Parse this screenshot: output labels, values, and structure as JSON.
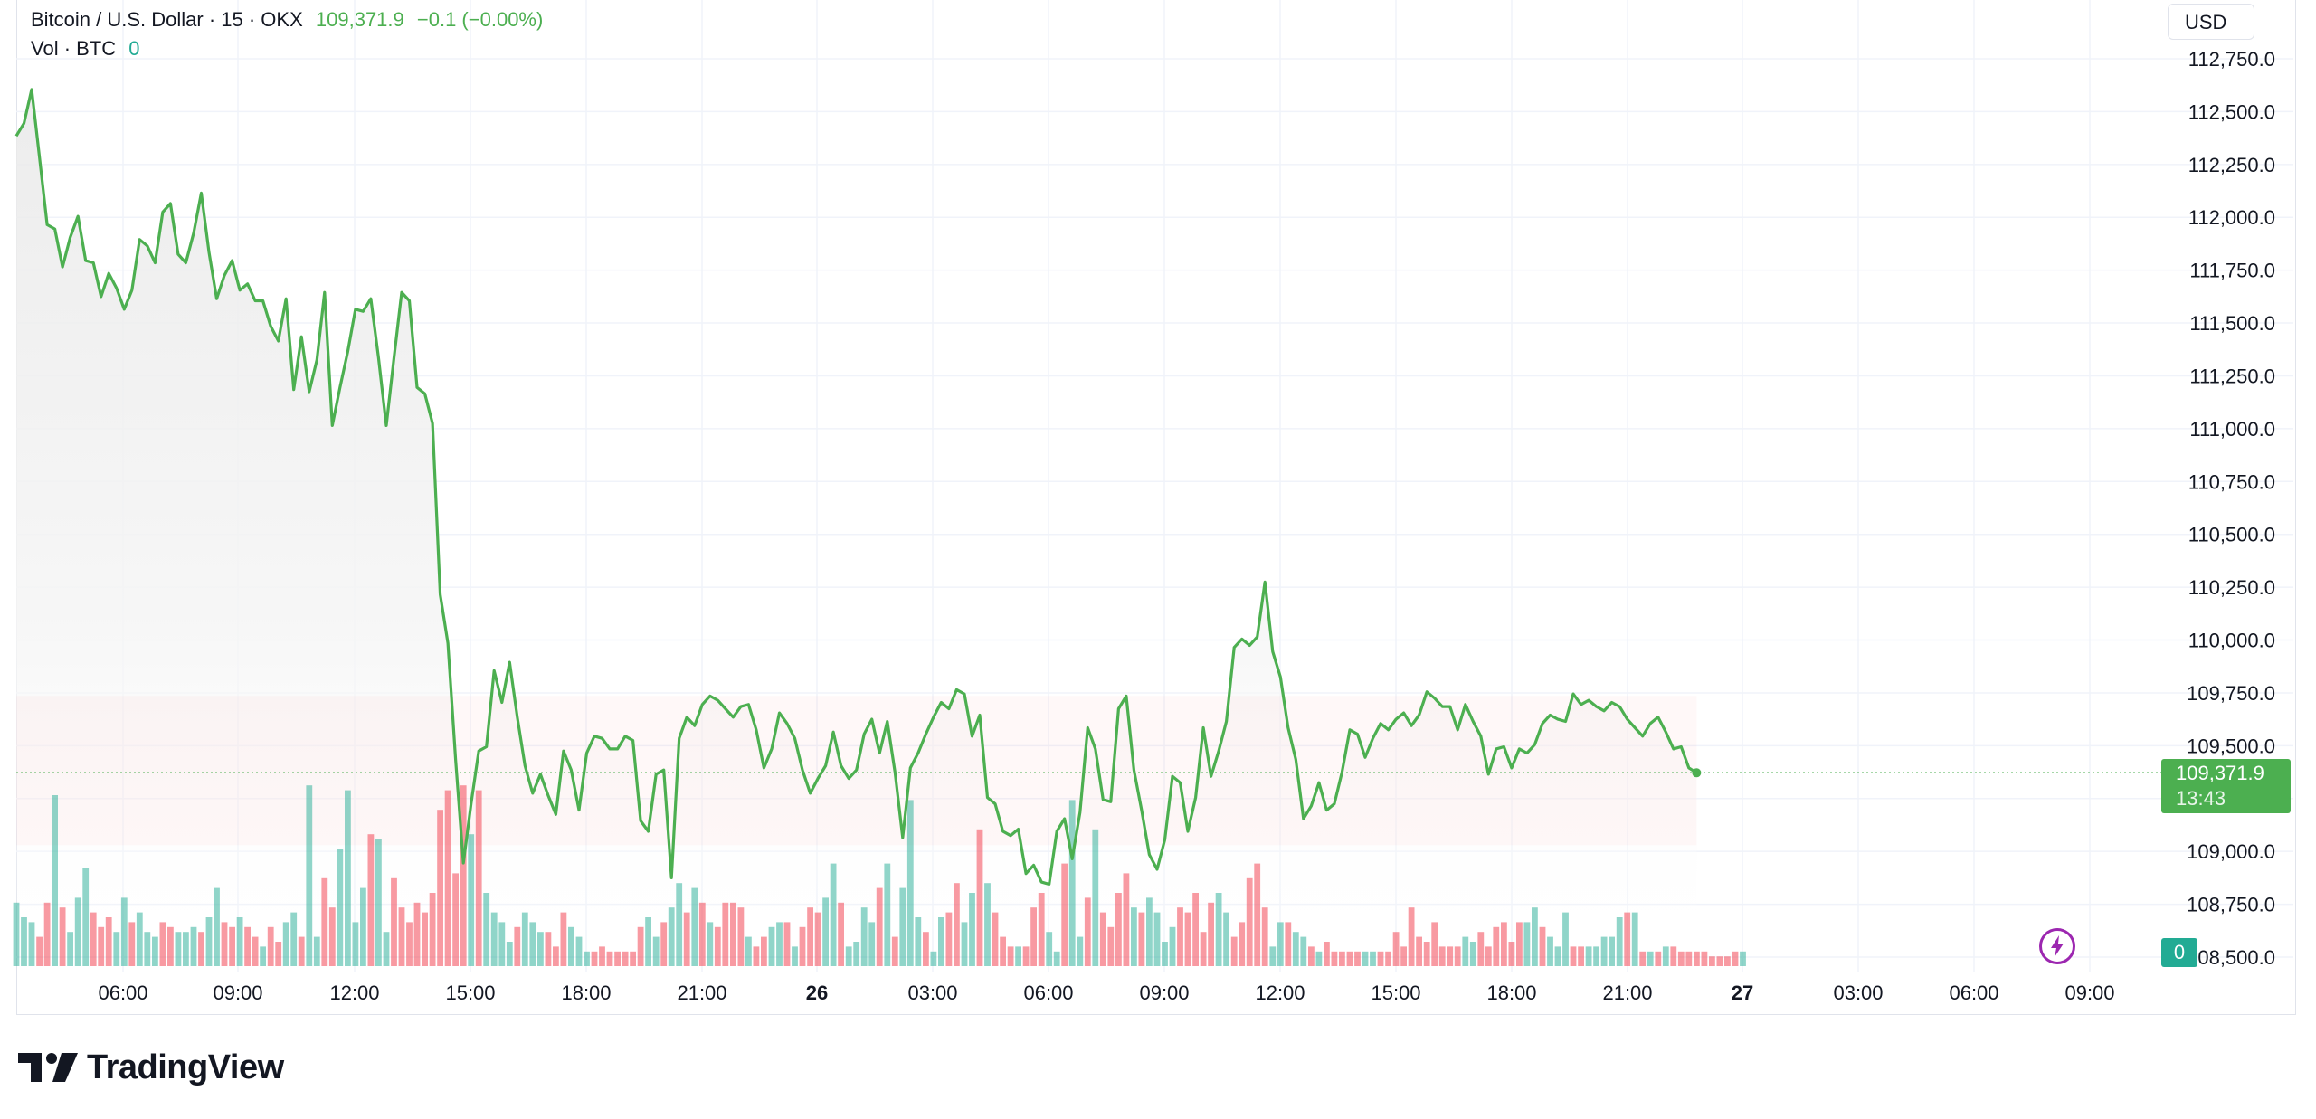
{
  "legend": {
    "symbol": "Bitcoin / U.S. Dollar · 15 · OKX",
    "last_price": "109,371.9",
    "change": "−0.1 (−0.00%)",
    "volume_label": "Vol · BTC",
    "volume_value": "0"
  },
  "currency_button": "USD",
  "price_tag": {
    "price": "109,371.9",
    "countdown": "13:43"
  },
  "volume_tag": "0",
  "logo": {
    "text": "TradingView",
    "icon": "tradingview-logo-icon"
  },
  "colors": {
    "line": "#4caf50",
    "volume_up": "#22ab94",
    "volume_down": "#f23645",
    "price_tag": "#4caf50",
    "grid": "#f0f3fa",
    "bolt_button": "#9c27b0"
  },
  "chart_data": {
    "type": "line",
    "title": "Bitcoin / U.S. Dollar · 15 · OKX",
    "xlabel": "",
    "ylabel": "",
    "ylim": [
      108450,
      112800
    ],
    "y_ticks": [
      "112,750.0",
      "112,500.0",
      "112,250.0",
      "112,000.0",
      "111,750.0",
      "111,500.0",
      "111,250.0",
      "111,000.0",
      "110,750.0",
      "110,500.0",
      "110,250.0",
      "110,000.0",
      "109,750.0",
      "109,500.0",
      "109,250.0",
      "109,000.0",
      "108,750.0",
      "108,500.0"
    ],
    "x_ticks": [
      "06:00",
      "09:00",
      "12:00",
      "15:00",
      "18:00",
      "21:00",
      "26",
      "03:00",
      "06:00",
      "09:00",
      "12:00",
      "15:00",
      "18:00",
      "21:00",
      "27",
      "03:00",
      "06:00",
      "09:00"
    ],
    "x_ticks_bold": [
      "26",
      "27"
    ],
    "grid": true,
    "interval_minutes": 15,
    "last_price": 109371.9,
    "series": [
      {
        "values": [
          112385,
          112445,
          112605,
          112285,
          111965,
          111945,
          111765,
          111905,
          112005,
          111795,
          111785,
          111625,
          111735,
          111665,
          111565,
          111655,
          111895,
          111865,
          111785,
          112025,
          112065,
          111825,
          111785,
          111925,
          112115,
          111835,
          111615,
          111725,
          111795,
          111655,
          111685,
          111605,
          111605,
          111485,
          111415,
          111615,
          111185,
          111435,
          111175,
          111325,
          111645,
          111015,
          111195,
          111365,
          111565,
          111555,
          111615,
          111335,
          111015,
          111335,
          111645,
          111605,
          111195,
          111165,
          111025,
          110215,
          109985,
          109435,
          108945,
          109225,
          109475,
          109495,
          109855,
          109705,
          109895,
          109635,
          109405,
          109275,
          109365,
          109265,
          109175,
          109475,
          109385,
          109195,
          109465,
          109545,
          109535,
          109485,
          109485,
          109545,
          109525,
          109145,
          109095,
          109365,
          109385,
          108875,
          109535,
          109635,
          109595,
          109695,
          109735,
          109715,
          109675,
          109635,
          109685,
          109695,
          109575,
          109395,
          109485,
          109655,
          109605,
          109535,
          109385,
          109275,
          109345,
          109405,
          109565,
          109405,
          109345,
          109385,
          109555,
          109625,
          109465,
          109615,
          109375,
          109065,
          109395,
          109465,
          109555,
          109635,
          109705,
          109675,
          109765,
          109745,
          109545,
          109645,
          109255,
          109225,
          109095,
          109075,
          109105,
          108895,
          108935,
          108855,
          108845,
          109095,
          109155,
          108965,
          109185,
          109585,
          109485,
          109245,
          109235,
          109675,
          109735,
          109385,
          109195,
          108985,
          108915,
          109055,
          109355,
          109325,
          109095,
          109255,
          109585,
          109355,
          109475,
          109615,
          109965,
          110005,
          109975,
          110015,
          110275,
          109945,
          109825,
          109585,
          109435,
          109155,
          109215,
          109325,
          109195,
          109225,
          109375,
          109575,
          109555,
          109445,
          109535,
          109605,
          109575,
          109625,
          109655,
          109595,
          109645,
          109755,
          109725,
          109685,
          109685,
          109575,
          109695,
          109615,
          109545,
          109365,
          109485,
          109495,
          109395,
          109485,
          109465,
          109505,
          109605,
          109645,
          109625,
          109615,
          109745,
          109695,
          109715,
          109685,
          109665,
          109705,
          109685,
          109625,
          109585,
          109545,
          109605,
          109635,
          109565,
          109485,
          109495,
          109395,
          109371.9
        ]
      },
      {
        "name": "Vol · BTC",
        "up": [
          1,
          1,
          1,
          0,
          0,
          1,
          0,
          1,
          1,
          1,
          0,
          0,
          0,
          1,
          1,
          0,
          1,
          1,
          1,
          0,
          0,
          1,
          1,
          1,
          0,
          1,
          1,
          0,
          0,
          1,
          0,
          0,
          1,
          0,
          0,
          1,
          1,
          0,
          1,
          1,
          0,
          0,
          1,
          1,
          1,
          1,
          0,
          1,
          1,
          0,
          0,
          0,
          0,
          0,
          0,
          0,
          0,
          0,
          0,
          1,
          0,
          1,
          1,
          1,
          1,
          0,
          1,
          1,
          1,
          0,
          0,
          0,
          1,
          1,
          1,
          0,
          0,
          0,
          0,
          0,
          0,
          0,
          1,
          1,
          0,
          1,
          1,
          0,
          1,
          0,
          1,
          0,
          0,
          0,
          0,
          1,
          0,
          0,
          1,
          1,
          0,
          1,
          0,
          0,
          0,
          1,
          1,
          0,
          1,
          1,
          1,
          1,
          0,
          1,
          0,
          1,
          1,
          1,
          0,
          1,
          1,
          0,
          0,
          1,
          1,
          0,
          1,
          0,
          0,
          0,
          1,
          0,
          0,
          0,
          1,
          1,
          0,
          1,
          1,
          0,
          1,
          0,
          0,
          0,
          0,
          1,
          0,
          1,
          1,
          1,
          1,
          0,
          0,
          0,
          0,
          0,
          1,
          1,
          0,
          0,
          0,
          0,
          0,
          1,
          1,
          0,
          1,
          1,
          0,
          1,
          0,
          0,
          0,
          0,
          0,
          1,
          1,
          0,
          0,
          0,
          0,
          0,
          0,
          0,
          0,
          0,
          0,
          0,
          1,
          1,
          0,
          0,
          0,
          0,
          0,
          0,
          1,
          1,
          0,
          1,
          1,
          1,
          0,
          0,
          1,
          1,
          1,
          1,
          1,
          0,
          1,
          0,
          1,
          0,
          1,
          0,
          0,
          0,
          0,
          0,
          0,
          0,
          0,
          0,
          1
        ],
        "values": [
          13,
          10,
          9,
          6,
          13,
          35,
          12,
          7,
          14,
          20,
          11,
          8,
          10,
          7,
          14,
          9,
          11,
          7,
          6,
          9,
          8,
          7,
          7,
          8,
          7,
          10,
          16,
          9,
          8,
          10,
          8,
          6,
          4,
          8,
          5,
          9,
          11,
          6,
          37,
          6,
          18,
          12,
          24,
          36,
          9,
          16,
          27,
          26,
          7,
          18,
          12,
          9,
          13,
          11,
          15,
          32,
          36,
          19,
          37,
          27,
          36,
          15,
          11,
          9,
          5,
          8,
          11,
          9,
          7,
          7,
          4,
          11,
          8,
          6,
          3,
          3,
          4,
          3,
          3,
          3,
          3,
          8,
          10,
          6,
          9,
          12,
          17,
          11,
          16,
          13,
          9,
          8,
          13,
          13,
          12,
          6,
          4,
          6,
          8,
          9,
          9,
          4,
          8,
          12,
          11,
          14,
          21,
          13,
          4,
          5,
          12,
          9,
          16,
          21,
          6,
          16,
          34,
          10,
          7,
          3,
          10,
          11,
          17,
          9,
          15,
          28,
          17,
          11,
          6,
          4,
          4,
          4,
          12,
          15,
          7,
          3,
          21,
          34,
          6,
          14,
          28,
          11,
          8,
          15,
          19,
          12,
          11,
          14,
          11,
          5,
          8,
          12,
          11,
          15,
          7,
          13,
          15,
          11,
          6,
          9,
          18,
          21,
          12,
          4,
          9,
          9,
          7,
          6,
          4,
          3,
          5,
          3,
          3,
          3,
          3,
          3,
          3,
          3,
          3,
          7,
          4,
          12,
          6,
          5,
          9,
          4,
          4,
          4,
          6,
          5,
          7,
          4,
          8,
          9,
          5,
          9,
          9,
          12,
          8,
          6,
          4,
          11,
          4,
          4,
          4,
          4,
          6,
          6,
          10,
          11,
          11,
          3,
          3,
          3,
          4,
          4,
          3,
          3,
          3,
          3,
          2,
          2,
          2,
          3,
          3
        ]
      }
    ]
  }
}
